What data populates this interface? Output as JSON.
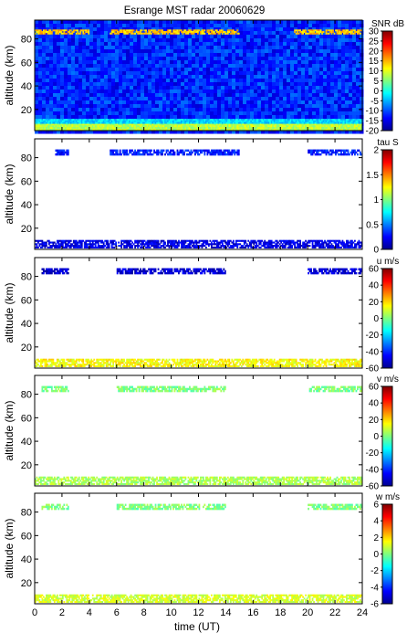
{
  "chart_data": {
    "type": "heatmap",
    "title": "Esrange MST radar 20060629",
    "xlabel": "time (UT)",
    "x_ticks": [
      0,
      2,
      4,
      6,
      8,
      10,
      12,
      14,
      16,
      18,
      20,
      22,
      24
    ],
    "xlim": [
      0,
      24
    ],
    "panels": [
      {
        "name": "snr",
        "ylabel": "altitude (km)",
        "ylim": [
          2,
          96
        ],
        "y_ticks": [
          20,
          40,
          60,
          80
        ],
        "colorbar": {
          "label": "SNR dB",
          "min": -20,
          "max": 30,
          "ticks": [
            30,
            25,
            20,
            15,
            10,
            5,
            0,
            -5,
            -10,
            -15,
            -20
          ]
        },
        "features": [
          {
            "type": "background",
            "value": -12
          },
          {
            "type": "band",
            "alt_min": 2,
            "alt_max": 8,
            "value": 8
          },
          {
            "type": "band",
            "alt_min": 8,
            "alt_max": 12,
            "value": -3
          },
          {
            "type": "band",
            "alt_min": 84,
            "alt_max": 88,
            "value": 14,
            "t_ranges": [
              [
                0,
                4
              ],
              [
                5.5,
                15
              ],
              [
                19,
                24
              ]
            ]
          }
        ]
      },
      {
        "name": "tau",
        "ylabel": "altitude (km)",
        "ylim": [
          2,
          96
        ],
        "y_ticks": [
          20,
          40,
          60,
          80
        ],
        "colorbar": {
          "label": "tau S",
          "min": 0,
          "max": 2,
          "ticks": [
            2,
            1.5,
            1,
            0.5,
            0
          ]
        },
        "features": [
          {
            "type": "band",
            "alt_min": 3,
            "alt_max": 10,
            "value": 0.2,
            "t_ranges": [
              [
                0,
                24
              ]
            ]
          },
          {
            "type": "band",
            "alt_min": 82,
            "alt_max": 87,
            "value": 0.3,
            "t_ranges": [
              [
                1.5,
                2.5
              ],
              [
                5.5,
                15
              ],
              [
                20,
                24
              ]
            ]
          }
        ]
      },
      {
        "name": "u",
        "ylabel": "altitude (km)",
        "ylim": [
          2,
          96
        ],
        "y_ticks": [
          20,
          40,
          60,
          80
        ],
        "colorbar": {
          "label": "u m/s",
          "min": -60,
          "max": 60,
          "ticks": [
            60,
            40,
            20,
            0,
            -20,
            -40,
            -60
          ]
        },
        "features": [
          {
            "type": "band",
            "alt_min": 3,
            "alt_max": 10,
            "value": 15,
            "t_ranges": [
              [
                0,
                24
              ]
            ]
          },
          {
            "type": "band",
            "alt_min": 82,
            "alt_max": 87,
            "value": -50,
            "t_ranges": [
              [
                0.5,
                2.5
              ],
              [
                6,
                14
              ],
              [
                20,
                24
              ]
            ]
          }
        ]
      },
      {
        "name": "v",
        "ylabel": "altitude (km)",
        "ylim": [
          2,
          96
        ],
        "y_ticks": [
          20,
          40,
          60,
          80
        ],
        "colorbar": {
          "label": "v m/s",
          "min": -60,
          "max": 60,
          "ticks": [
            60,
            40,
            20,
            0,
            -20,
            -40,
            -60
          ]
        },
        "features": [
          {
            "type": "band",
            "alt_min": 3,
            "alt_max": 10,
            "value": 5,
            "t_ranges": [
              [
                0,
                24
              ]
            ]
          },
          {
            "type": "band",
            "alt_min": 82,
            "alt_max": 87,
            "value": 0,
            "t_ranges": [
              [
                0.5,
                2.5
              ],
              [
                6,
                14
              ],
              [
                20,
                24
              ]
            ]
          }
        ]
      },
      {
        "name": "w",
        "ylabel": "altitude (km)",
        "ylim": [
          2,
          96
        ],
        "y_ticks": [
          20,
          40,
          60,
          80
        ],
        "colorbar": {
          "label": "w m/s",
          "min": -6,
          "max": 6,
          "ticks": [
            6,
            4,
            2,
            0,
            -2,
            -4,
            -6
          ]
        },
        "features": [
          {
            "type": "band",
            "alt_min": 3,
            "alt_max": 10,
            "value": 1,
            "t_ranges": [
              [
                0,
                24
              ]
            ]
          },
          {
            "type": "band",
            "alt_min": 82,
            "alt_max": 87,
            "value": 0,
            "t_ranges": [
              [
                0.5,
                2.5
              ],
              [
                6,
                14
              ],
              [
                20,
                24
              ]
            ]
          }
        ]
      }
    ]
  }
}
